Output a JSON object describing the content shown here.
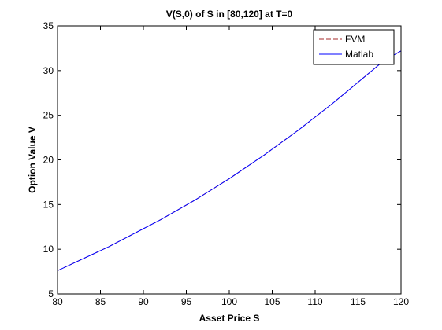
{
  "chart_data": {
    "type": "line",
    "title": "V(S,0) of S in [80,120] at T=0",
    "xlabel": "Asset Price S",
    "ylabel": "Option Value V",
    "xlim": [
      80,
      120
    ],
    "ylim": [
      5,
      35
    ],
    "xticks": [
      80,
      85,
      90,
      95,
      100,
      105,
      110,
      115,
      120
    ],
    "yticks": [
      5,
      10,
      15,
      20,
      25,
      30,
      35
    ],
    "grid": false,
    "legend_position": "top-right",
    "x": [
      80,
      82,
      84,
      86,
      88,
      90,
      92,
      94,
      96,
      98,
      100,
      102,
      104,
      106,
      108,
      110,
      112,
      114,
      116,
      118,
      120
    ],
    "series": [
      {
        "name": "FVM",
        "color": "#a52a2a",
        "style": "dashed",
        "values": [
          7.6,
          8.5,
          9.4,
          10.3,
          11.3,
          12.3,
          13.3,
          14.4,
          15.5,
          16.7,
          17.9,
          19.2,
          20.5,
          21.9,
          23.3,
          24.8,
          26.3,
          27.9,
          29.5,
          31.1,
          32.2
        ]
      },
      {
        "name": "Matlab",
        "color": "#0000ff",
        "style": "solid",
        "values": [
          7.6,
          8.5,
          9.4,
          10.3,
          11.3,
          12.3,
          13.3,
          14.4,
          15.5,
          16.7,
          17.9,
          19.2,
          20.5,
          21.9,
          23.3,
          24.8,
          26.3,
          27.9,
          29.5,
          31.1,
          32.2
        ]
      }
    ]
  }
}
